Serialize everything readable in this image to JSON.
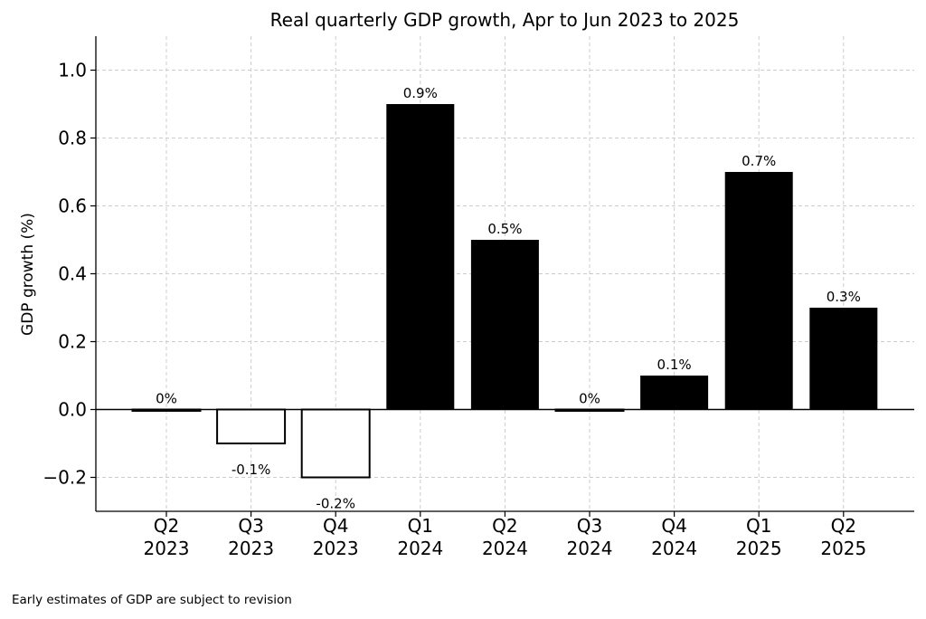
{
  "chart_data": {
    "type": "bar",
    "title": "Real quarterly GDP growth, Apr to Jun 2023 to 2025",
    "xlabel": "",
    "ylabel": "GDP growth (%)",
    "categories": [
      [
        "Q2",
        "2023"
      ],
      [
        "Q3",
        "2023"
      ],
      [
        "Q4",
        "2023"
      ],
      [
        "Q1",
        "2024"
      ],
      [
        "Q2",
        "2024"
      ],
      [
        "Q3",
        "2024"
      ],
      [
        "Q4",
        "2024"
      ],
      [
        "Q1",
        "2025"
      ],
      [
        "Q2",
        "2025"
      ]
    ],
    "values": [
      0.0,
      -0.1,
      -0.2,
      0.9,
      0.5,
      0.0,
      0.1,
      0.7,
      0.3
    ],
    "data_labels": [
      "0%",
      "-0.1%",
      "-0.2%",
      "0.9%",
      "0.5%",
      "0%",
      "0.1%",
      "0.7%",
      "0.3%"
    ],
    "ylim": [
      -0.3,
      1.1
    ],
    "yticks": [
      -0.2,
      0.0,
      0.2,
      0.4,
      0.6,
      0.8,
      1.0
    ],
    "ytick_labels": [
      "−0.2",
      "0.0",
      "0.2",
      "0.4",
      "0.6",
      "0.8",
      "1.0"
    ],
    "grid": true,
    "colors": {
      "positive": "#000000",
      "nonpositive_fill": "#ffffff",
      "outline": "#000000",
      "grid": "#cccccc"
    }
  },
  "footnote": "Early estimates of GDP are subject to revision"
}
